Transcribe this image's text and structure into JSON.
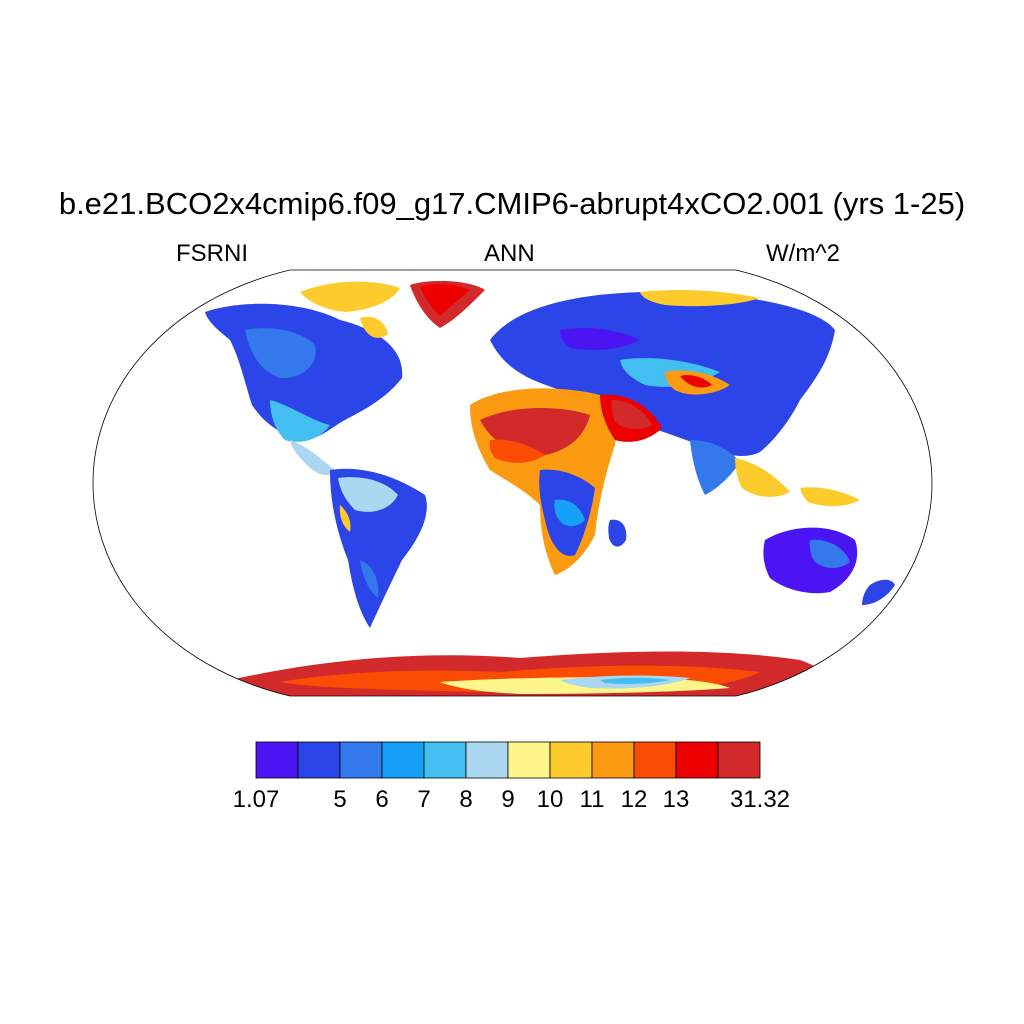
{
  "title": "b.e21.BCO2x4cmip6.f09_g17.CMIP6-abrupt4xCO2.001 (yrs 1-25)",
  "subtitle_left": "FSRNI",
  "subtitle_center": "ANN",
  "subtitle_right": "W/m^2",
  "colorbar": {
    "colors": [
      "#4b14f2",
      "#2b45e8",
      "#3479eb",
      "#17a0f7",
      "#43bef0",
      "#abd8f0",
      "#fef58c",
      "#fdcb2c",
      "#fc9a11",
      "#fb4c04",
      "#ec0000",
      "#d22a2a"
    ],
    "labels": [
      "1.07",
      "5",
      "6",
      "7",
      "8",
      "9",
      "10",
      "11",
      "12",
      "13",
      "31.32"
    ]
  }
}
